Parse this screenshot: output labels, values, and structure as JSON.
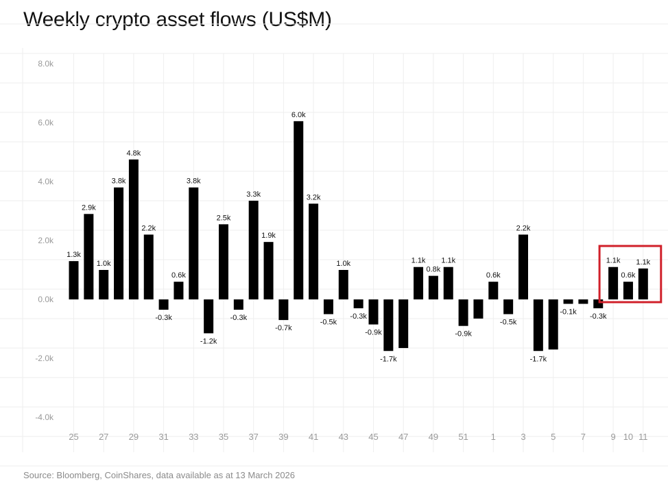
{
  "chart_data": {
    "type": "bar",
    "title": "Weekly crypto asset flows (US$M)",
    "xlabel": "",
    "ylabel": "",
    "ylim": [
      -4000,
      8000
    ],
    "yticks": [
      8000,
      6000,
      4000,
      2000,
      0,
      -2000,
      -4000
    ],
    "ytick_labels": [
      "8.0k",
      "6.0k",
      "4.0k",
      "2.0k",
      "0.0k",
      "-2.0k",
      "-4.0k"
    ],
    "grid": true,
    "categories": [
      "25",
      "26",
      "27",
      "28",
      "29",
      "30",
      "31",
      "32",
      "33",
      "34",
      "35",
      "36",
      "37",
      "38",
      "39",
      "40",
      "41",
      "42",
      "43",
      "44",
      "45",
      "46",
      "47",
      "48",
      "49",
      "50",
      "51",
      "52",
      "1",
      "2",
      "3",
      "4",
      "5",
      "6",
      "7",
      "8",
      "9",
      "10",
      "11"
    ],
    "x_tick_labels": [
      "25",
      "",
      "27",
      "",
      "29",
      "",
      "31",
      "",
      "33",
      "",
      "35",
      "",
      "37",
      "",
      "39",
      "",
      "41",
      "",
      "43",
      "",
      "45",
      "",
      "47",
      "",
      "49",
      "",
      "51",
      "",
      "1",
      "",
      "3",
      "",
      "5",
      "",
      "7",
      "",
      "9",
      "10",
      "11"
    ],
    "values": [
      1300,
      2900,
      1000,
      3800,
      4750,
      2200,
      -350,
      600,
      3800,
      -1150,
      2550,
      -350,
      3350,
      1950,
      -700,
      6050,
      3250,
      -500,
      1000,
      -300,
      -850,
      -1750,
      -1650,
      1100,
      800,
      1100,
      -900,
      -650,
      600,
      -500,
      2200,
      -1750,
      -1700,
      -150,
      -150,
      -300,
      1100,
      600,
      1050
    ],
    "data_labels": [
      "1.3k",
      "2.9k",
      "1.0k",
      "3.8k",
      "4.8k",
      "2.2k",
      "-0.3k",
      "0.6k",
      "3.8k",
      "-1.2k",
      "2.5k",
      "-0.3k",
      "3.3k",
      "1.9k",
      "-0.7k",
      "6.0k",
      "3.2k",
      "-0.5k",
      "1.0k",
      "-0.3k",
      "-0.9k",
      "-1.7k",
      "",
      "1.1k",
      "0.8k",
      "1.1k",
      "-0.9k",
      "",
      "0.6k",
      "-0.5k",
      "2.2k",
      "-1.7k",
      "",
      "-0.1k",
      "",
      "-0.3k",
      "1.1k",
      "0.6k",
      "1.1k"
    ],
    "highlight": {
      "from_index": 36,
      "to_index": 38,
      "color": "#d0202a"
    },
    "bar_color": "#000000"
  },
  "source": "Source: Bloomberg, CoinShares, data available as at 13 March 2026"
}
